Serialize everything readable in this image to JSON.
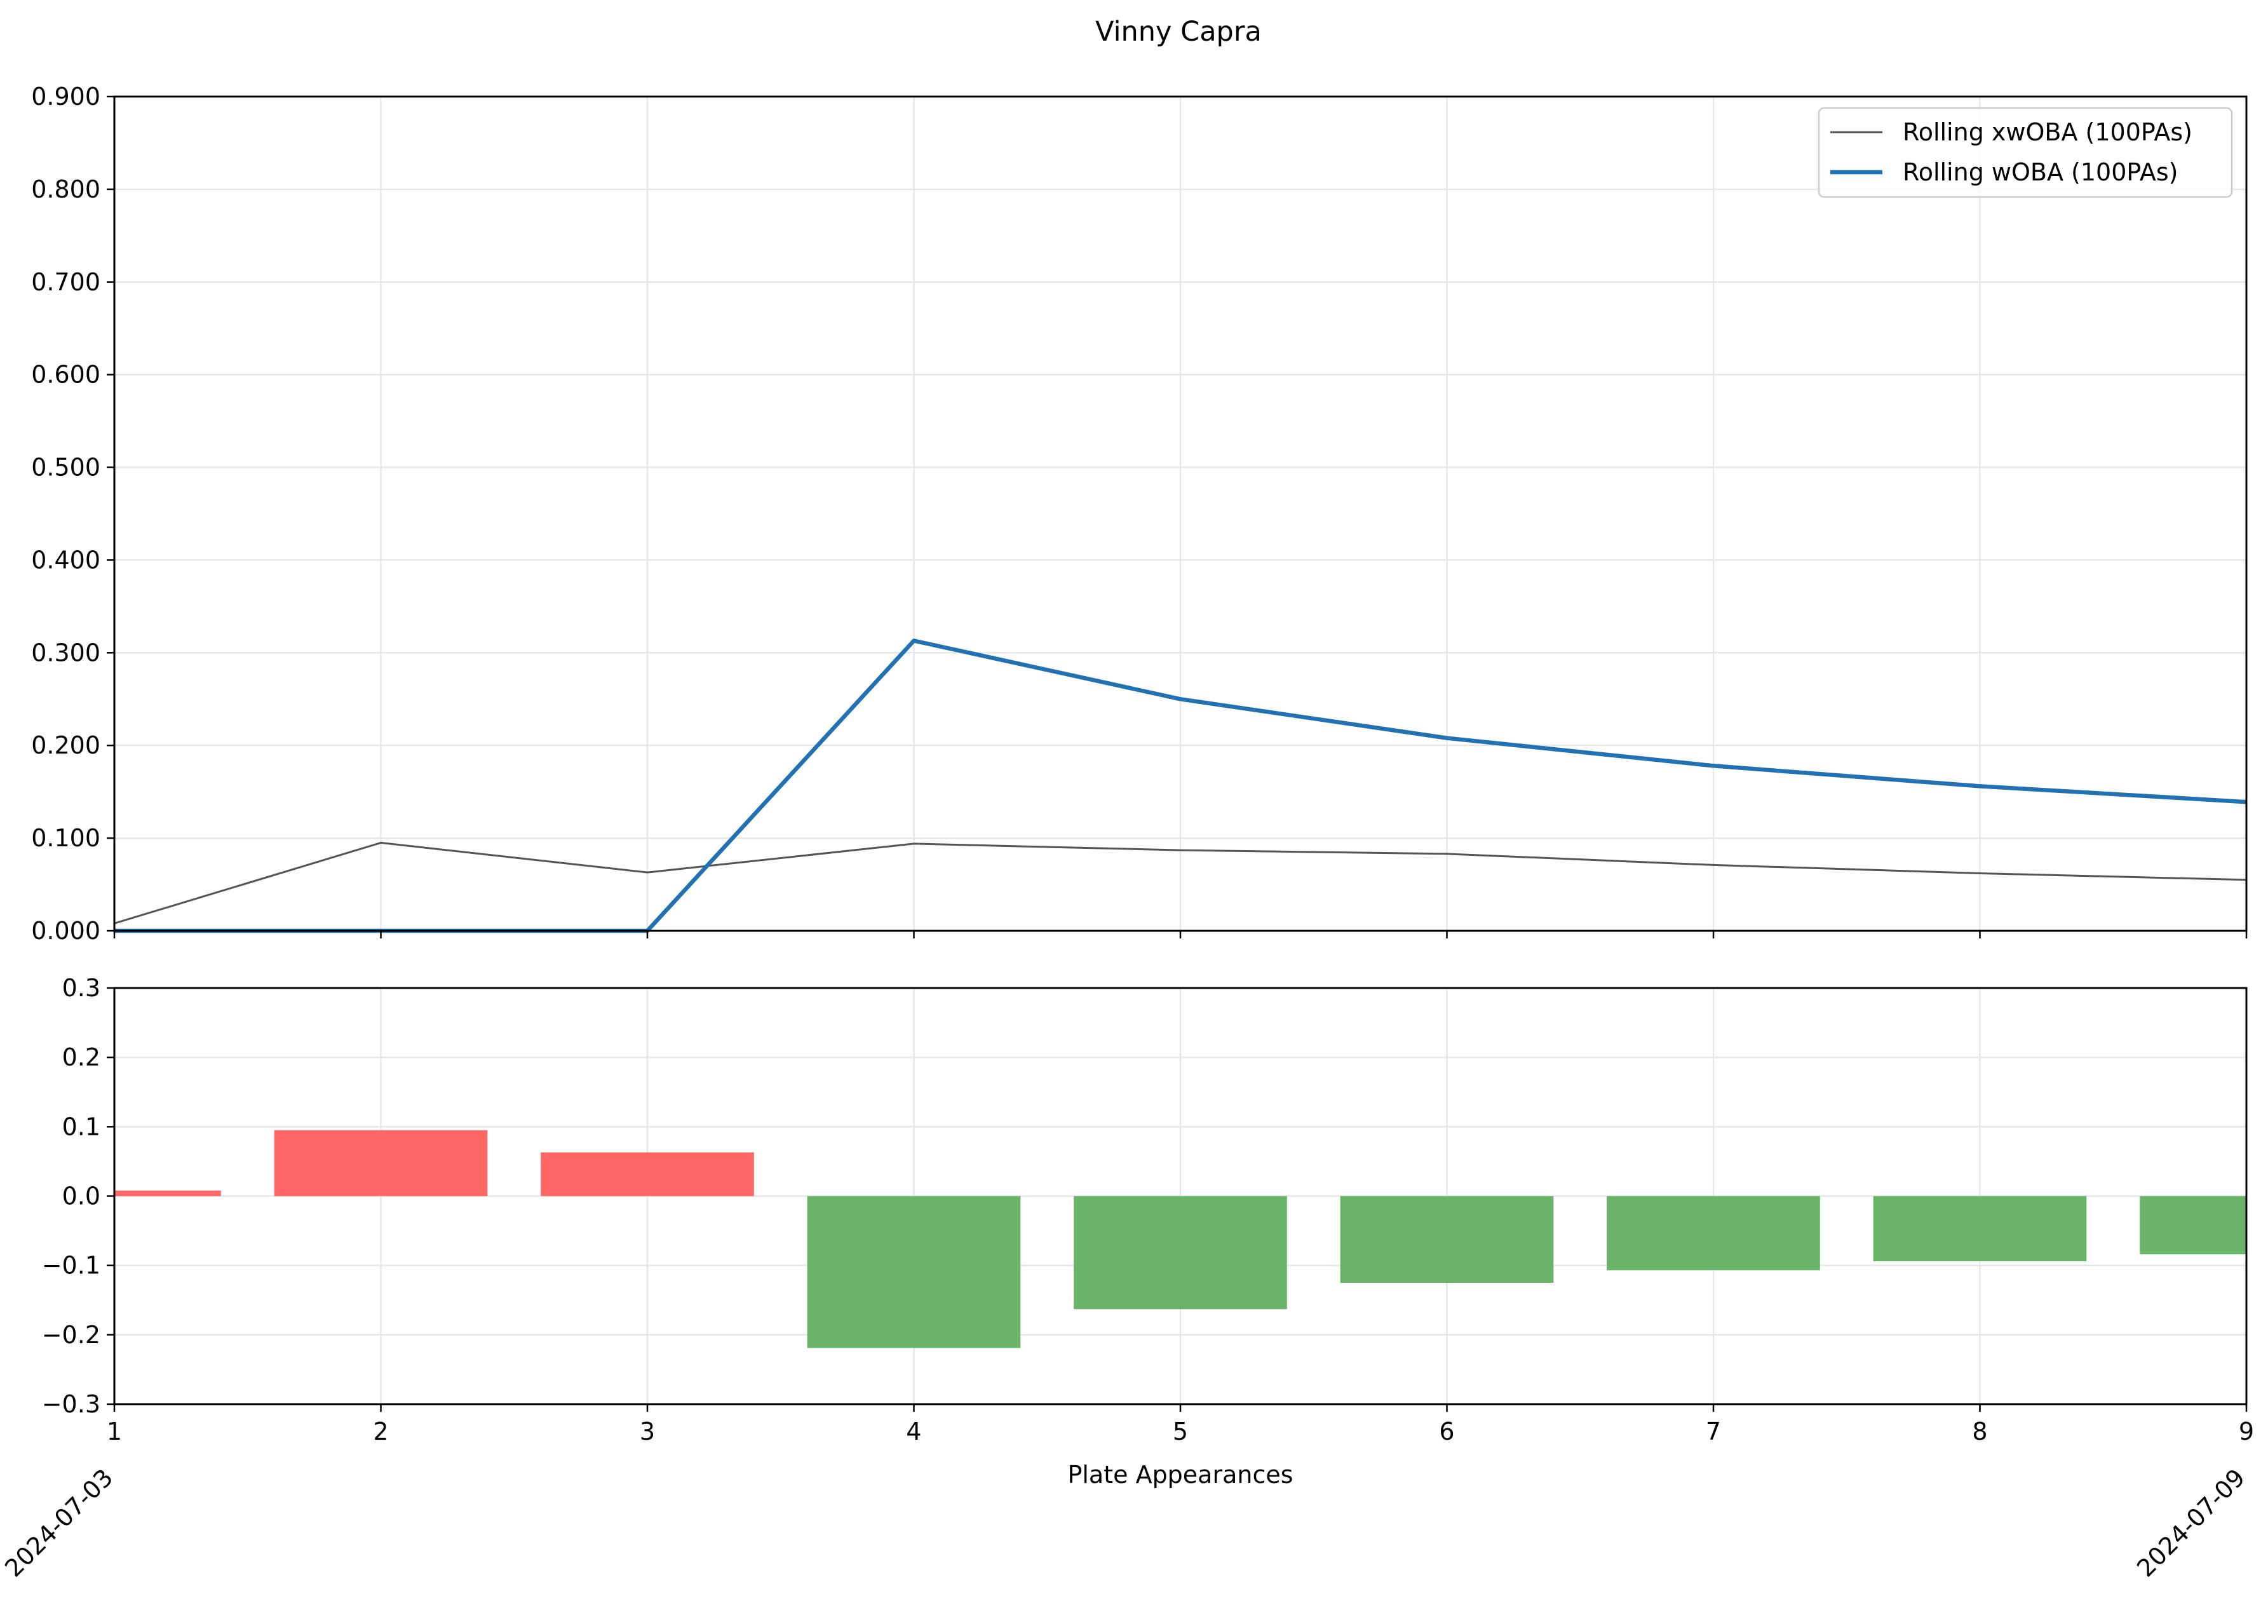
{
  "title": "Vinny Capra",
  "chart_data": [
    {
      "type": "line",
      "x": [
        1,
        2,
        3,
        4,
        5,
        6,
        7,
        8,
        9
      ],
      "xlim": [
        1,
        9
      ],
      "ylim": [
        0,
        0.9
      ],
      "yticks": [
        "0.000",
        "0.100",
        "0.200",
        "0.300",
        "0.400",
        "0.500",
        "0.600",
        "0.700",
        "0.800",
        "0.900"
      ],
      "grid": true,
      "legend_position": "top-right",
      "series": [
        {
          "name": "Rolling xwOBA (100PAs)",
          "color": "#555555",
          "values": [
            0.008,
            0.095,
            0.063,
            0.094,
            0.087,
            0.083,
            0.071,
            0.062,
            0.055
          ]
        },
        {
          "name": "Rolling wOBA (100PAs)",
          "color": "#2271b3",
          "values": [
            0.0,
            0.0,
            0.0,
            0.313,
            0.25,
            0.208,
            0.178,
            0.156,
            0.139
          ]
        }
      ]
    },
    {
      "type": "bar",
      "x": [
        1,
        2,
        3,
        4,
        5,
        6,
        7,
        8,
        9
      ],
      "values": [
        0.008,
        0.095,
        0.063,
        -0.219,
        -0.163,
        -0.125,
        -0.107,
        -0.094,
        -0.084
      ],
      "xlim": [
        1,
        9
      ],
      "ylim": [
        -0.3,
        0.3
      ],
      "yticks": [
        "−0.3",
        "−0.2",
        "−0.1",
        "0.0",
        "0.1",
        "0.2",
        "0.3"
      ],
      "xticks": [
        "1",
        "2",
        "3",
        "4",
        "5",
        "6",
        "7",
        "8",
        "9"
      ],
      "xlabel": "Plate Appearances",
      "grid": true,
      "positive_color": "#ff6666",
      "negative_color": "#6ab46a",
      "date_labels": [
        {
          "x": 1,
          "text": "2024-07-03"
        },
        {
          "x": 9,
          "text": "2024-07-09"
        }
      ]
    }
  ]
}
